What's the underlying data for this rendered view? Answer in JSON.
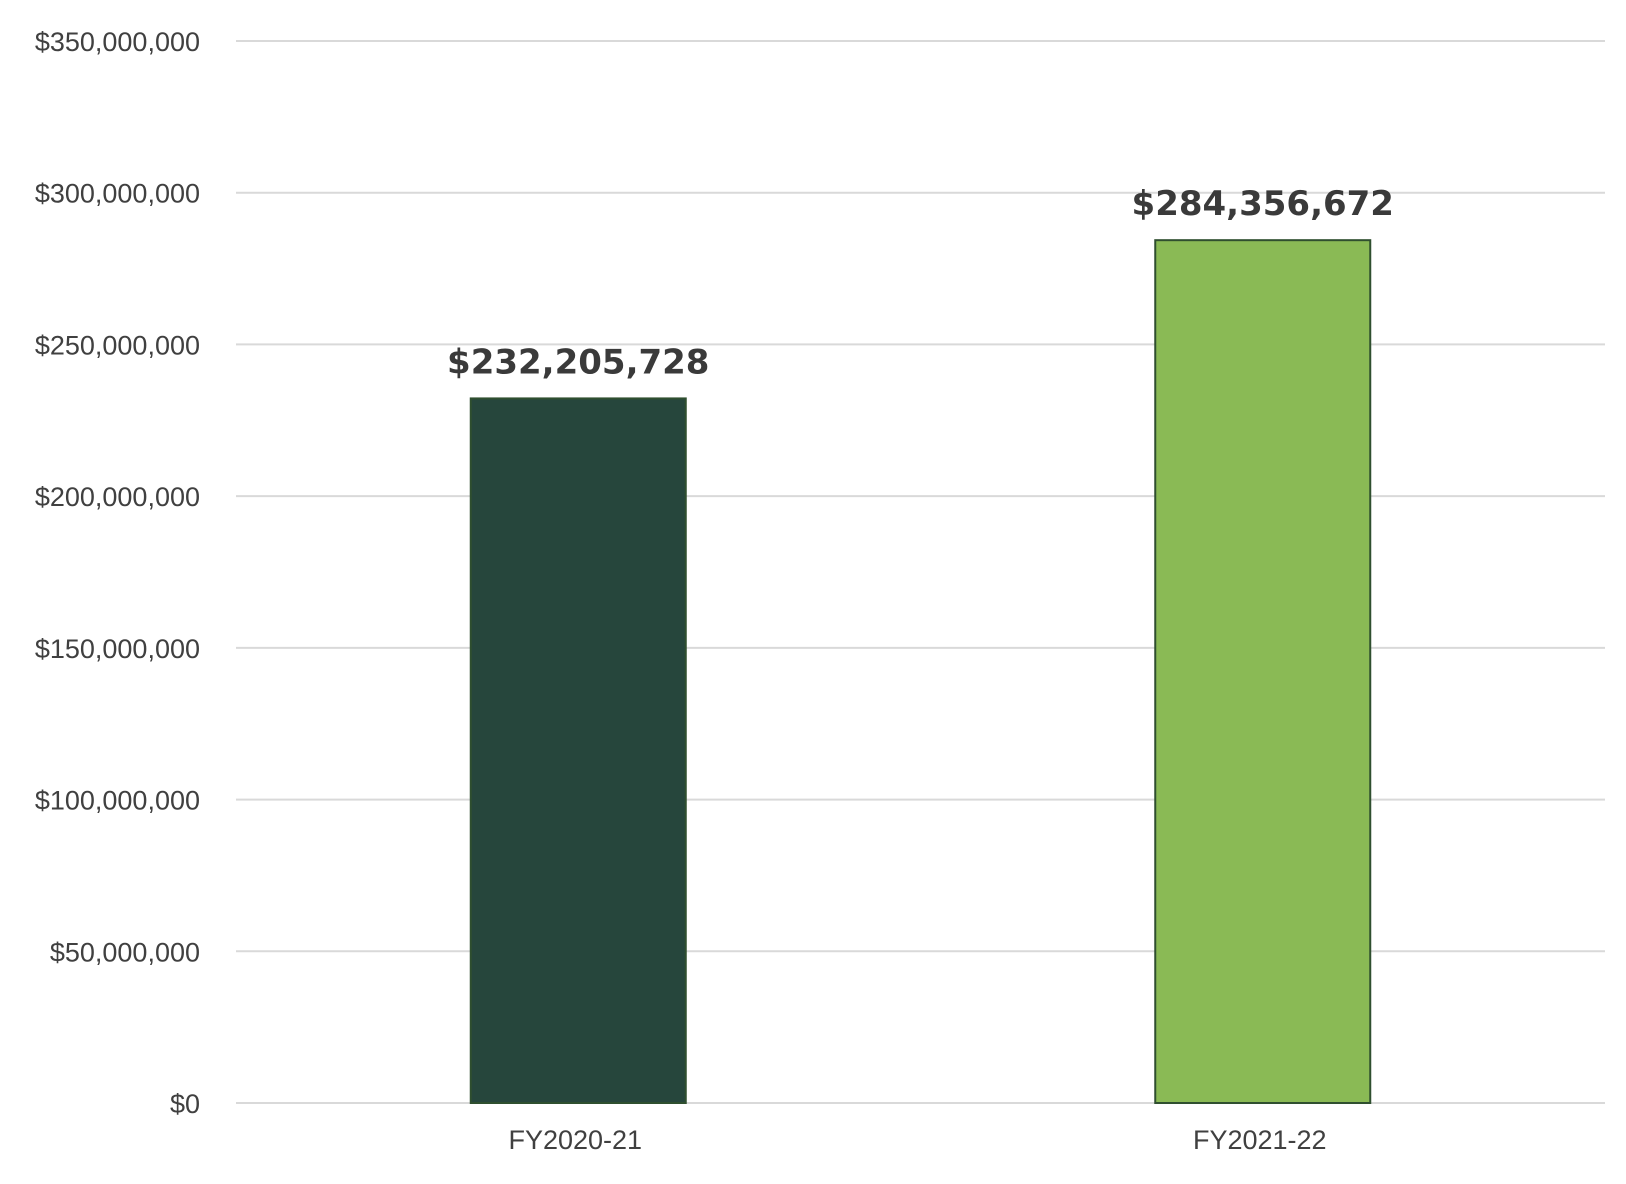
{
  "chart_data": {
    "type": "bar",
    "title": "",
    "xlabel": "",
    "ylabel": "",
    "categories": [
      "FY2020-21",
      "FY2021-22"
    ],
    "values": [
      232205728,
      284356672
    ],
    "data_labels": [
      "$232,205,728",
      "$284,356,672"
    ],
    "bar_colors": [
      "#26463c",
      "#8aba55"
    ],
    "ylim": [
      0,
      350000000
    ],
    "yticks": [
      0,
      50000000,
      100000000,
      150000000,
      200000000,
      250000000,
      300000000,
      350000000
    ],
    "ytick_labels": [
      "$0",
      "$50,000,000",
      "$100,000,000",
      "$150,000,000",
      "$200,000,000",
      "$250,000,000",
      "$300,000,000",
      "$350,000,000"
    ],
    "grid": true,
    "legend": "none"
  }
}
